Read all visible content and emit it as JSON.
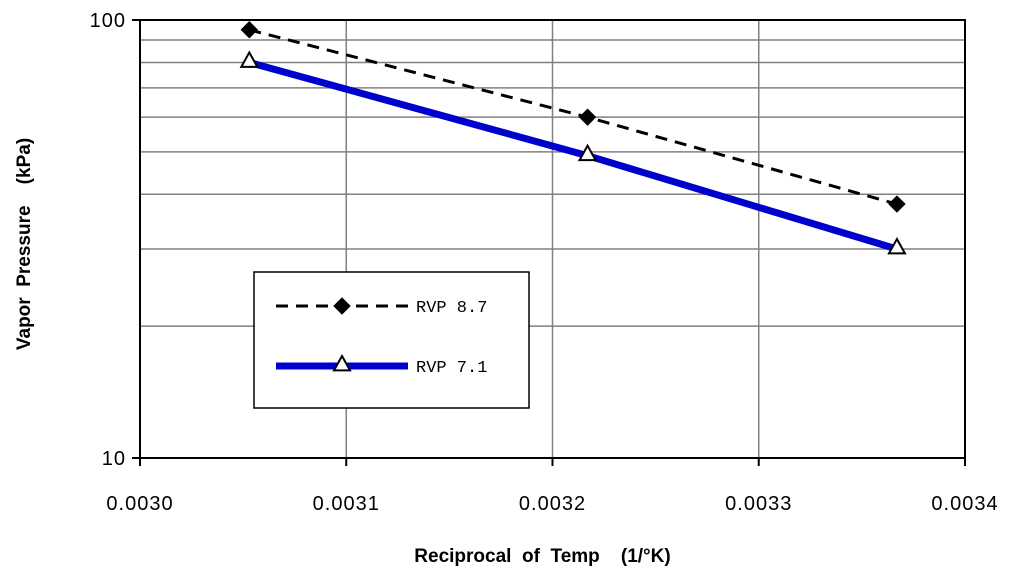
{
  "chart_data": {
    "type": "line",
    "xlabel": "Reciprocal  of  Temp    (1/°K)",
    "ylabel": "Vapor  Pressure    (kPa)",
    "xlim": [
      0.003,
      0.0034
    ],
    "ylim": [
      10,
      100
    ],
    "yscale": "log",
    "grid": true,
    "legend_position": "lower-left",
    "xticks": [
      "0.0030",
      "0.0031",
      "0.0032",
      "0.0033",
      "0.0034"
    ],
    "yticks": [
      {
        "value": 100,
        "label": "100"
      },
      {
        "value": 10,
        "label": "10"
      }
    ],
    "series": [
      {
        "name": "RVP 8.7",
        "x": [
          0.003053,
          0.003217,
          0.003367
        ],
        "y": [
          95,
          60,
          38
        ],
        "style": "dashed",
        "marker": "diamond",
        "color": "#000000"
      },
      {
        "name": "RVP 7.1",
        "x": [
          0.003053,
          0.003217,
          0.003367
        ],
        "y": [
          80,
          49,
          30
        ],
        "style": "solid",
        "marker": "triangle",
        "color": "#0000cc"
      }
    ]
  }
}
